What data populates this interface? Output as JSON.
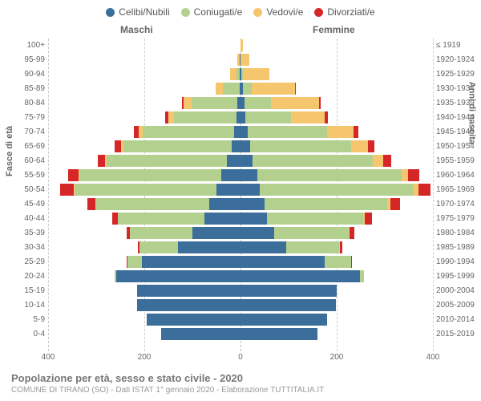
{
  "legend": [
    {
      "label": "Celibi/Nubili",
      "color": "#3b6e9a"
    },
    {
      "label": "Coniugati/e",
      "color": "#b4d08f"
    },
    {
      "label": "Vedovi/e",
      "color": "#f6c66f"
    },
    {
      "label": "Divorziati/e",
      "color": "#d62728"
    }
  ],
  "gender": {
    "m": "Maschi",
    "f": "Femmine"
  },
  "axis": {
    "left_title": "Fasce di età",
    "right_title": "Anni di nascita",
    "xmax": 400,
    "xticks": [
      -400,
      -200,
      0,
      200,
      400
    ],
    "xtick_labels": [
      "400",
      "200",
      "0",
      "200",
      "400"
    ]
  },
  "colors": {
    "single": "#3b6e9a",
    "married": "#b4d08f",
    "widowed": "#f6c66f",
    "divorced": "#d62728",
    "grid": "#cccccc",
    "bg": "#ffffff"
  },
  "footer": {
    "title": "Popolazione per età, sesso e stato civile - 2020",
    "sub": "COMUNE DI TIRANO (SO) - Dati ISTAT 1° gennaio 2020 - Elaborazione TUTTITALIA.IT"
  },
  "rows": [
    {
      "age": "100+",
      "birth": "≤ 1919",
      "m": [
        0,
        0,
        0,
        0
      ],
      "f": [
        0,
        0,
        5,
        0
      ]
    },
    {
      "age": "95-99",
      "birth": "1920-1924",
      "m": [
        1,
        0,
        6,
        0
      ],
      "f": [
        0,
        0,
        18,
        0
      ]
    },
    {
      "age": "90-94",
      "birth": "1925-1929",
      "m": [
        1,
        8,
        12,
        0
      ],
      "f": [
        1,
        4,
        55,
        0
      ]
    },
    {
      "age": "85-89",
      "birth": "1930-1934",
      "m": [
        2,
        35,
        15,
        0
      ],
      "f": [
        5,
        18,
        90,
        2
      ]
    },
    {
      "age": "80-84",
      "birth": "1935-1939",
      "m": [
        6,
        95,
        18,
        2
      ],
      "f": [
        8,
        55,
        100,
        4
      ]
    },
    {
      "age": "75-79",
      "birth": "1940-1944",
      "m": [
        8,
        130,
        12,
        6
      ],
      "f": [
        10,
        95,
        70,
        6
      ]
    },
    {
      "age": "70-74",
      "birth": "1945-1949",
      "m": [
        14,
        190,
        8,
        10
      ],
      "f": [
        15,
        165,
        55,
        10
      ]
    },
    {
      "age": "65-69",
      "birth": "1950-1954",
      "m": [
        18,
        225,
        6,
        12
      ],
      "f": [
        20,
        210,
        35,
        14
      ]
    },
    {
      "age": "60-64",
      "birth": "1955-1959",
      "m": [
        28,
        250,
        3,
        16
      ],
      "f": [
        25,
        250,
        22,
        16
      ]
    },
    {
      "age": "55-59",
      "birth": "1960-1964",
      "m": [
        40,
        295,
        2,
        22
      ],
      "f": [
        35,
        300,
        14,
        22
      ]
    },
    {
      "age": "50-54",
      "birth": "1965-1969",
      "m": [
        50,
        295,
        2,
        28
      ],
      "f": [
        40,
        320,
        10,
        25
      ]
    },
    {
      "age": "45-49",
      "birth": "1970-1974",
      "m": [
        65,
        235,
        1,
        18
      ],
      "f": [
        50,
        255,
        6,
        20
      ]
    },
    {
      "age": "40-44",
      "birth": "1975-1979",
      "m": [
        75,
        180,
        0,
        12
      ],
      "f": [
        55,
        200,
        4,
        14
      ]
    },
    {
      "age": "35-39",
      "birth": "1980-1984",
      "m": [
        100,
        130,
        0,
        6
      ],
      "f": [
        70,
        155,
        2,
        10
      ]
    },
    {
      "age": "30-34",
      "birth": "1985-1989",
      "m": [
        130,
        80,
        0,
        3
      ],
      "f": [
        95,
        110,
        1,
        6
      ]
    },
    {
      "age": "25-29",
      "birth": "1990-1994",
      "m": [
        205,
        30,
        0,
        1
      ],
      "f": [
        175,
        55,
        0,
        2
      ]
    },
    {
      "age": "20-24",
      "birth": "1995-1999",
      "m": [
        258,
        3,
        0,
        0
      ],
      "f": [
        248,
        8,
        0,
        0
      ]
    },
    {
      "age": "15-19",
      "birth": "2000-2004",
      "m": [
        215,
        0,
        0,
        0
      ],
      "f": [
        200,
        0,
        0,
        0
      ]
    },
    {
      "age": "10-14",
      "birth": "2005-2009",
      "m": [
        215,
        0,
        0,
        0
      ],
      "f": [
        198,
        0,
        0,
        0
      ]
    },
    {
      "age": "5-9",
      "birth": "2010-2014",
      "m": [
        195,
        0,
        0,
        0
      ],
      "f": [
        180,
        0,
        0,
        0
      ]
    },
    {
      "age": "0-4",
      "birth": "2015-2019",
      "m": [
        165,
        0,
        0,
        0
      ],
      "f": [
        160,
        0,
        0,
        0
      ]
    }
  ]
}
